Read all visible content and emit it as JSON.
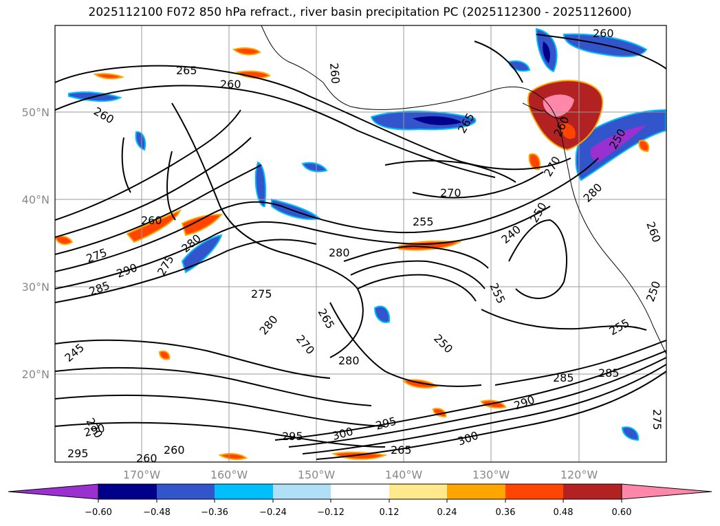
{
  "title": "2025112100 F072 850 hPa refract., river basin precipitation PC (2025112300 - 2025112600)",
  "lat_labels": [
    "50°N",
    "40°N",
    "30°N",
    "20°N"
  ],
  "lon_labels": [
    "170°W",
    "160°W",
    "150°W",
    "140°W",
    "130°W",
    "120°W"
  ],
  "colorbar": {
    "colors": [
      "#9b30d0",
      "#00008b",
      "#3355cc",
      "#00bfff",
      "#b0e0f8",
      "#ffffff",
      "#ffe98a",
      "#ffa500",
      "#ff4500",
      "#b22222",
      "#ff88aa"
    ],
    "ticks": [
      "−0.60",
      "−0.48",
      "−0.36",
      "−0.24",
      "−0.12",
      "0.12",
      "0.24",
      "0.36",
      "0.48",
      "0.60"
    ]
  },
  "contour_labels": [
    "260",
    "260",
    "265",
    "260",
    "265",
    "260",
    "270",
    "255",
    "260",
    "280",
    "275",
    "290",
    "275",
    "285",
    "280",
    "270",
    "240",
    "250",
    "255",
    "280",
    "275",
    "265",
    "280",
    "270",
    "280",
    "250",
    "245",
    "255",
    "285",
    "285",
    "290",
    "275",
    "270",
    "290",
    "295",
    "300",
    "295",
    "295",
    "300",
    "265",
    "260",
    "260",
    "250",
    "260"
  ],
  "colors": {
    "contour": "#000000",
    "grid": "#9a9a9a",
    "coast": "#000000"
  }
}
